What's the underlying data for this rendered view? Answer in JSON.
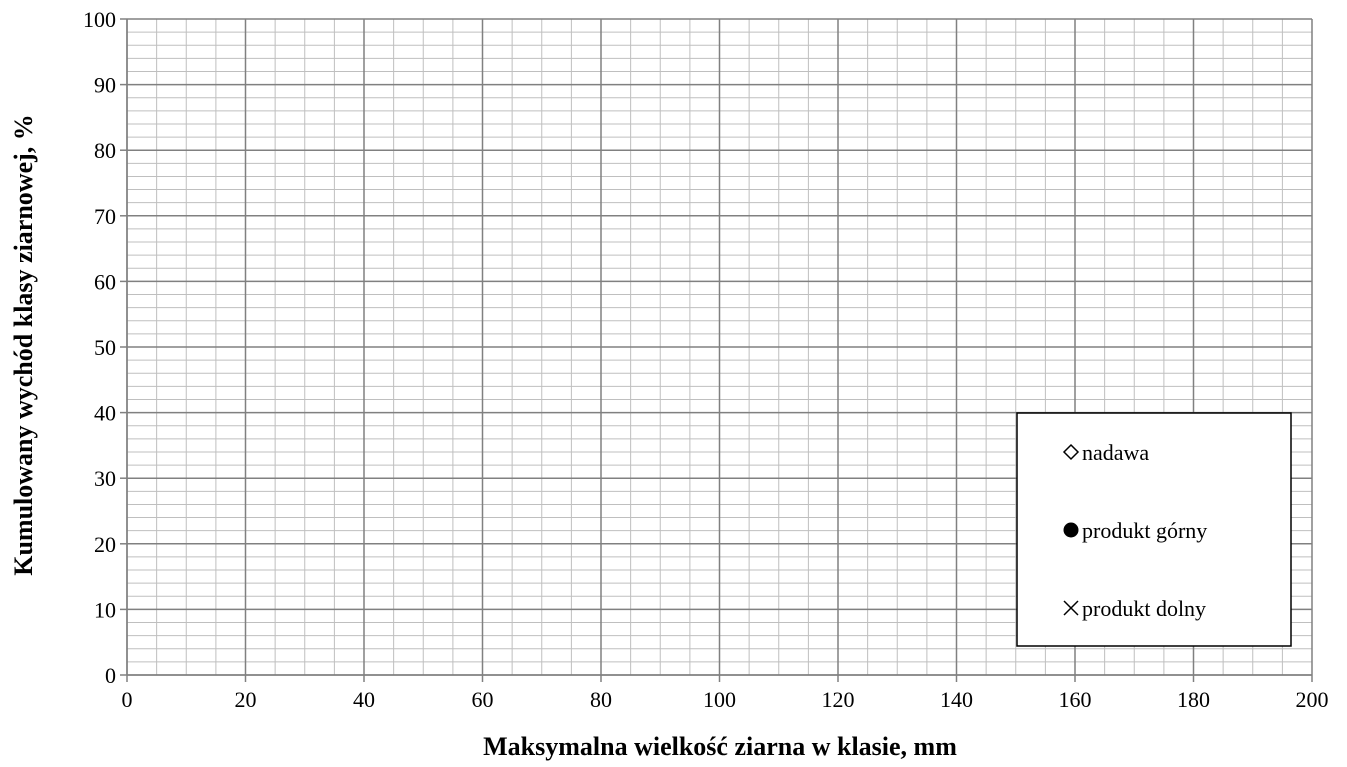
{
  "chart_data": {
    "type": "scatter",
    "title": "",
    "xlabel": "Maksymalna wielkość ziarna w klasie, mm",
    "ylabel": "Kumulowany wychód klasy ziarnowej, %",
    "xlim": [
      0,
      200
    ],
    "ylim": [
      0,
      100
    ],
    "x_ticks": [
      0,
      20,
      40,
      60,
      80,
      100,
      120,
      140,
      160,
      180,
      200
    ],
    "y_ticks": [
      0,
      10,
      20,
      30,
      40,
      50,
      60,
      70,
      80,
      90,
      100
    ],
    "grid": {
      "major": true,
      "minor": true,
      "x_major_step": 20,
      "x_minor_step": 5,
      "y_major_step": 10,
      "y_minor_step": 2
    },
    "legend_position": "bottom-right",
    "series": [
      {
        "name": "nadawa",
        "marker": "diamond-open",
        "points": []
      },
      {
        "name": "produkt górny",
        "marker": "circle-filled",
        "points": []
      },
      {
        "name": "produkt dolny",
        "marker": "cross",
        "points": []
      }
    ]
  },
  "colors": {
    "major_grid": "#808080",
    "minor_grid": "#bfbfbf",
    "axis": "#808080",
    "text": "#000000"
  }
}
